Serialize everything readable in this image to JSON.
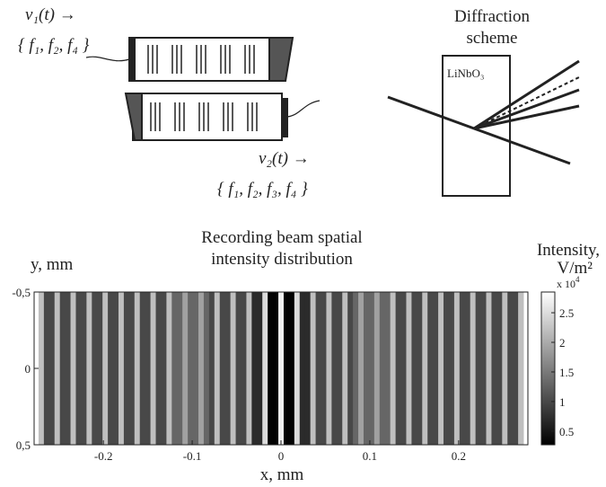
{
  "diagram": {
    "signal_1": "v₁(t) →",
    "freqs_1": "{ f₁, f₂, f₄ }",
    "signal_2": "v₂(t) →",
    "freqs_2": "{ f₁, f₂, f₃, f₄ }",
    "scheme_title_1": "Diffraction",
    "scheme_title_2": "scheme",
    "crystal": "LiNbO₃"
  },
  "chart_data": {
    "type": "heatmap",
    "title_1": "Recording beam spatial",
    "title_2": "intensity distribution",
    "xlabel": "x, mm",
    "ylabel": "y, mm",
    "colorbar_label_1": "Intensity,",
    "colorbar_label_2": "V/m²",
    "colorbar_multiplier": "x 10",
    "colorbar_exponent": "4",
    "xlim": [
      -0.278,
      0.278
    ],
    "xticks": [
      -0.2,
      -0.1,
      0,
      0.1,
      0.2
    ],
    "ylim": [
      -0.5,
      0.5
    ],
    "y_reversed": true,
    "yticks": [
      {
        "value": -0.5,
        "label": "-0,5"
      },
      0,
      {
        "value": 0.5,
        "label": "0,5"
      }
    ],
    "clim": [
      2700,
      28500
    ],
    "cticks": [
      {
        "value": 5000,
        "label": "0.5"
      },
      {
        "value": 10000,
        "label": "1"
      },
      {
        "value": 15000,
        "label": "1.5"
      },
      {
        "value": 20000,
        "label": "2"
      },
      {
        "value": 25000,
        "label": "2.5"
      }
    ],
    "x": [
      -0.27,
      -0.264,
      -0.258,
      -0.252,
      -0.246,
      -0.24,
      -0.234,
      -0.228,
      -0.222,
      -0.216,
      -0.21,
      -0.204,
      -0.198,
      -0.192,
      -0.186,
      -0.18,
      -0.174,
      -0.168,
      -0.162,
      -0.156,
      -0.15,
      -0.144,
      -0.138,
      -0.132,
      -0.126,
      -0.12,
      -0.114,
      -0.108,
      -0.102,
      -0.096,
      -0.09,
      -0.084,
      -0.078,
      -0.072,
      -0.066,
      -0.06,
      -0.054,
      -0.048,
      -0.042,
      -0.036,
      -0.03,
      -0.024,
      -0.018,
      -0.012,
      -0.006,
      0,
      0.006,
      0.012,
      0.018,
      0.024,
      0.03,
      0.036,
      0.042,
      0.048,
      0.054,
      0.06,
      0.066,
      0.072,
      0.078,
      0.084,
      0.09,
      0.096,
      0.102,
      0.108,
      0.114,
      0.12,
      0.126,
      0.132,
      0.138,
      0.144,
      0.15,
      0.156,
      0.162,
      0.168,
      0.174,
      0.18,
      0.186,
      0.192,
      0.198,
      0.204,
      0.21,
      0.216,
      0.222,
      0.228,
      0.234,
      0.24,
      0.246,
      0.252,
      0.258,
      0.264,
      0.27
    ],
    "values": [
      22000,
      10000,
      10000,
      22000,
      10000,
      10000,
      22000,
      10000,
      10000,
      22000,
      10000,
      10000,
      22000,
      10000,
      10000,
      22000,
      10000,
      10000,
      22000,
      10000,
      10000,
      22000,
      10000,
      10000,
      22000,
      13000,
      13000,
      19000,
      13000,
      13000,
      19000,
      13000,
      10000,
      22000,
      10000,
      10000,
      22000,
      10000,
      10000,
      22000,
      7000,
      7000,
      25000,
      3000,
      3000,
      27000,
      3000,
      3000,
      25000,
      7000,
      7000,
      22000,
      10000,
      10000,
      22000,
      10000,
      10000,
      22000,
      10000,
      13000,
      19000,
      13000,
      13000,
      19000,
      13000,
      13000,
      22000,
      10000,
      10000,
      22000,
      10000,
      10000,
      22000,
      10000,
      10000,
      22000,
      10000,
      10000,
      22000,
      10000,
      10000,
      22000,
      10000,
      10000,
      22000,
      10000,
      10000,
      22000,
      10000,
      10000,
      22000
    ]
  }
}
